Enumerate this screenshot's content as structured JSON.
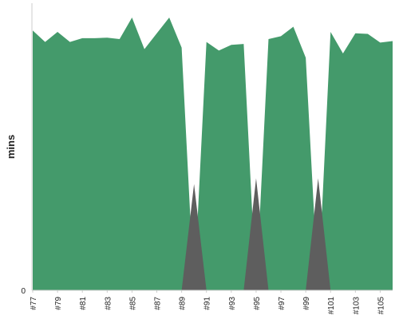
{
  "chart_data": {
    "type": "area",
    "title": "",
    "xlabel": "",
    "ylabel": "mins",
    "y_tick_labels": [
      "0"
    ],
    "ylim": [
      0,
      100
    ],
    "grid": false,
    "x": [
      "#77",
      "#78",
      "#79",
      "#80",
      "#81",
      "#82",
      "#83",
      "#84",
      "#85",
      "#86",
      "#87",
      "#88",
      "#89",
      "#90",
      "#91",
      "#92",
      "#93",
      "#94",
      "#95",
      "#96",
      "#97",
      "#98",
      "#99",
      "#100",
      "#101",
      "#102",
      "#103",
      "#104",
      "#105",
      "#106"
    ],
    "x_tick_labels": [
      "#77",
      "#79",
      "#81",
      "#83",
      "#85",
      "#87",
      "#89",
      "#91",
      "#93",
      "#95",
      "#97",
      "#99",
      "#101",
      "#103",
      "#105"
    ],
    "series": [
      {
        "color": "#449a6b",
        "values": [
          90.5,
          86.5,
          90,
          86.5,
          87.8,
          87.8,
          88,
          87.5,
          95,
          84,
          89.5,
          95,
          84.5,
          0,
          86.5,
          83.5,
          85.5,
          85.8,
          0,
          87.5,
          88.5,
          91.8,
          81,
          0,
          90,
          82.5,
          89.5,
          89.3,
          86.3,
          86.8
        ]
      },
      {
        "color": "#5e5e5e",
        "values": [
          0,
          0,
          0,
          0,
          0,
          0,
          0,
          0,
          0,
          0,
          0,
          0,
          0,
          37,
          0,
          0,
          0,
          0,
          39,
          0,
          0,
          0,
          0,
          39,
          0,
          0,
          0,
          0,
          0,
          0
        ]
      }
    ]
  }
}
